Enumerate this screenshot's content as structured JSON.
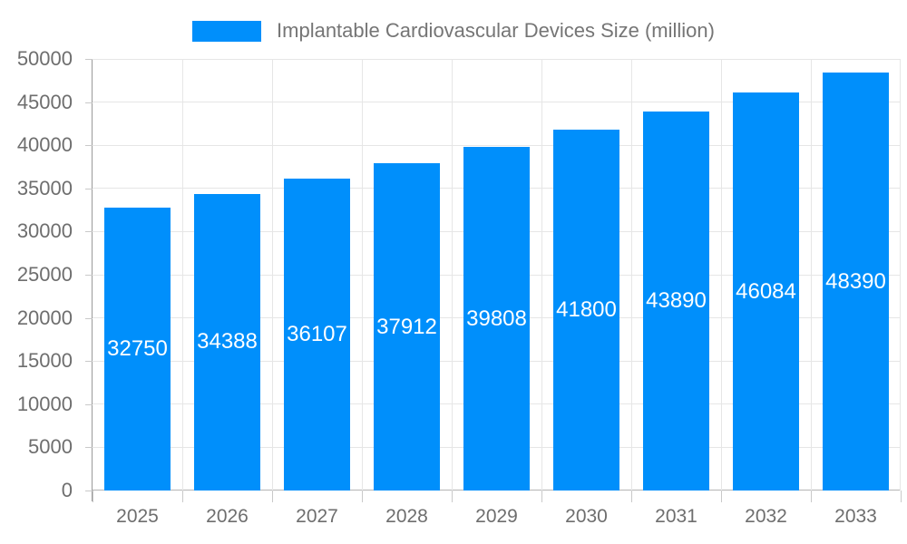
{
  "window": {
    "background": "#ffffff"
  },
  "legend": {
    "label": "Implantable Cardiovascular Devices Size (million)",
    "swatch_color": "#008FFB"
  },
  "chart_data": {
    "type": "bar",
    "title": "Implantable Cardiovascular Devices Size (million)",
    "categories": [
      "2025",
      "2026",
      "2027",
      "2028",
      "2029",
      "2030",
      "2031",
      "2032",
      "2033"
    ],
    "values": [
      32750,
      34388,
      36107,
      37912,
      39808,
      41800,
      43890,
      46084,
      48390
    ],
    "series": [
      {
        "name": "Implantable Cardiovascular Devices Size (million)",
        "values": [
          32750,
          34388,
          36107,
          37912,
          39808,
          41800,
          43890,
          46084,
          48390
        ]
      }
    ],
    "xlabel": "",
    "ylabel": "",
    "ylim": [
      0,
      50000
    ],
    "ytick_step": 5000,
    "ytick_labels": [
      "0",
      "5000",
      "10000",
      "15000",
      "20000",
      "25000",
      "30000",
      "35000",
      "40000",
      "45000",
      "50000"
    ],
    "grid": true,
    "legend_position": "top",
    "bar_labels_visible": true,
    "colors": {
      "bar": "#008FFB",
      "bar_label": "#FFFFFF",
      "axis_text": "#6E6E6E",
      "legend_text": "#757575",
      "grid_line": "#E6E6E6",
      "y_axis_line": "#9A9A9A",
      "x_axis_line": "#B5B5B5",
      "tick": "#C9C9C9"
    }
  }
}
